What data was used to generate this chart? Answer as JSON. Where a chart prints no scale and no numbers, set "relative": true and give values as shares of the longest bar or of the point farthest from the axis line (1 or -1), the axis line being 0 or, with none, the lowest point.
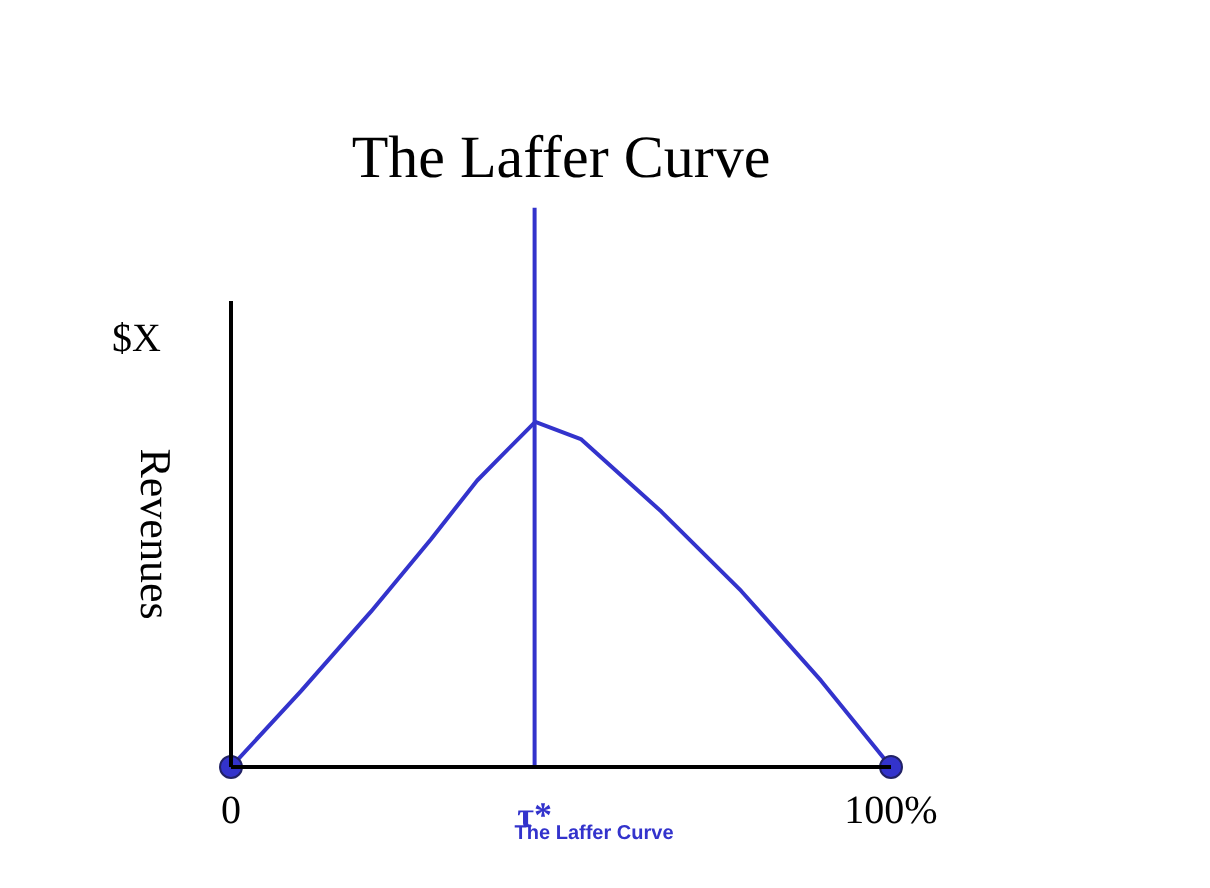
{
  "chart_data": {
    "type": "line",
    "title": "The Laffer Curve",
    "ylabel": "Revenues",
    "relative": true,
    "x": [
      0,
      10.6,
      21.2,
      30.3,
      37.3,
      40.9,
      46.1,
      53,
      65.2,
      77.3,
      89.4,
      100
    ],
    "xlim": [
      0,
      100
    ],
    "xticks": [
      0,
      {
        "value": 100,
        "label": "100%"
      }
    ],
    "series": [
      {
        "color": "#3333cc",
        "values": [
          0,
          0.22,
          0.45,
          0.66,
          0.83,
          0.9,
          1,
          0.95,
          0.74,
          0.51,
          0.25,
          0
        ]
      },
      {
        "type": "scatter",
        "marker": "circle",
        "color": "#3333cc",
        "x": [
          0,
          100
        ],
        "values": [
          0,
          0
        ]
      }
    ],
    "ref_lines": [
      {
        "axis": "x",
        "value": 46,
        "label": "τ*",
        "color": "#3333cc"
      }
    ],
    "annotations": [
      "$X",
      {
        "text": "The Laffer Curve",
        "x": 46,
        "y": 0
      }
    ],
    "grid": false,
    "marker": "none",
    "line_style": "solid"
  }
}
